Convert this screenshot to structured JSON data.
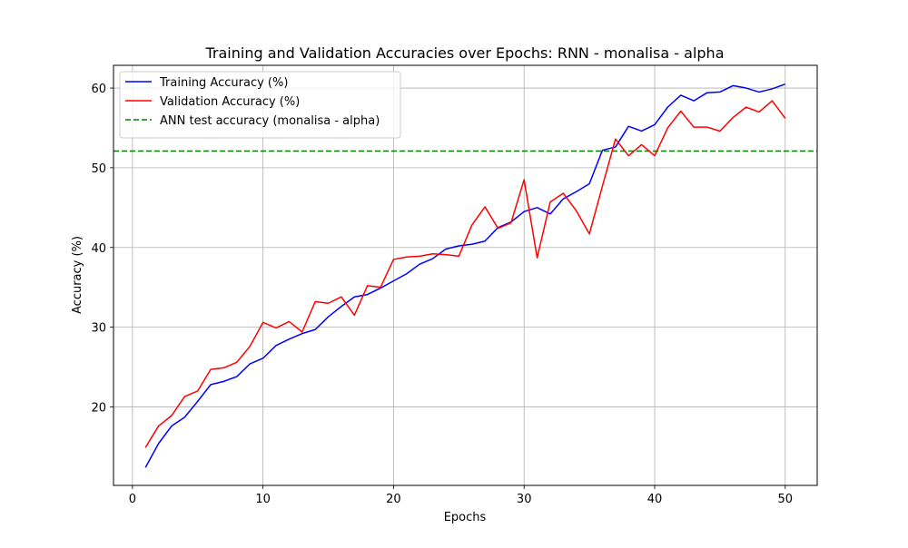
{
  "chart_data": {
    "type": "line",
    "title": "Training and Validation Accuracies over Epochs: RNN - monalisa - alpha",
    "xlabel": "Epochs",
    "ylabel": "Accuracy (%)",
    "xlim": [
      -1.45,
      52.45
    ],
    "ylim": [
      10.15,
      62.85
    ],
    "xticks": [
      0,
      10,
      20,
      30,
      40,
      50
    ],
    "yticks": [
      20,
      30,
      40,
      50,
      60
    ],
    "grid": true,
    "legend_position": "upper-left",
    "x": [
      1,
      2,
      3,
      4,
      5,
      6,
      7,
      8,
      9,
      10,
      11,
      12,
      13,
      14,
      15,
      16,
      17,
      18,
      19,
      20,
      21,
      22,
      23,
      24,
      25,
      26,
      27,
      28,
      29,
      30,
      31,
      32,
      33,
      34,
      35,
      36,
      37,
      38,
      39,
      40,
      41,
      42,
      43,
      44,
      45,
      46,
      47,
      48,
      49,
      50
    ],
    "series": [
      {
        "name": "Training Accuracy (%)",
        "color": "#0000ff",
        "style": "solid",
        "values": [
          12.4,
          15.4,
          17.6,
          18.7,
          20.7,
          22.8,
          23.2,
          23.8,
          25.4,
          26.1,
          27.7,
          28.5,
          29.2,
          29.7,
          31.3,
          32.6,
          33.8,
          34.1,
          34.9,
          35.8,
          36.7,
          37.9,
          38.6,
          39.8,
          40.2,
          40.4,
          40.8,
          42.5,
          43.2,
          44.5,
          45.0,
          44.2,
          46.1,
          47.0,
          48.0,
          52.2,
          52.6,
          55.2,
          54.6,
          55.4,
          57.6,
          59.1,
          58.4,
          59.4,
          59.5,
          60.3,
          60.0,
          59.5,
          59.9,
          60.5
        ]
      },
      {
        "name": "Validation Accuracy (%)",
        "color": "#ff0000",
        "style": "solid",
        "values": [
          14.9,
          17.6,
          18.9,
          21.3,
          22.0,
          24.7,
          24.9,
          25.6,
          27.6,
          30.6,
          29.9,
          30.7,
          29.4,
          33.2,
          33.0,
          33.8,
          31.5,
          35.2,
          35.0,
          38.5,
          38.8,
          38.9,
          39.2,
          39.1,
          38.9,
          42.8,
          45.1,
          42.4,
          43.1,
          48.5,
          38.7,
          45.7,
          46.8,
          44.6,
          41.7,
          47.7,
          53.6,
          51.5,
          52.9,
          51.5,
          55.0,
          57.1,
          55.1,
          55.1,
          54.6,
          56.3,
          57.6,
          57.0,
          58.4,
          56.2
        ]
      }
    ],
    "reference_lines": [
      {
        "name": "ANN test accuracy (monalisa - alpha)",
        "y": 52.1,
        "color": "#008000",
        "style": "dashed"
      }
    ]
  }
}
